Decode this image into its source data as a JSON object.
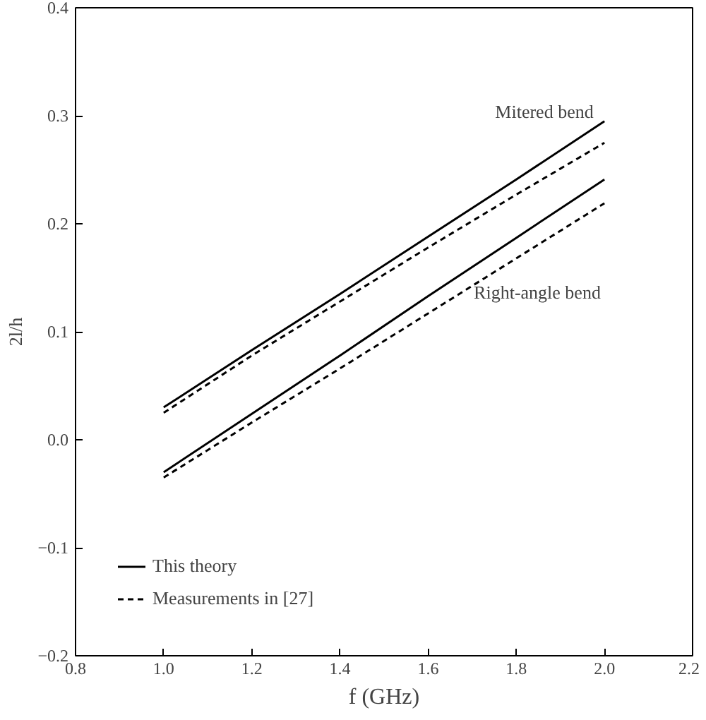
{
  "chart_data": {
    "type": "line",
    "xlabel": "f (GHz)",
    "ylabel": "2l/h",
    "x": [
      1.0,
      1.2,
      1.4,
      1.6,
      1.8,
      2.0
    ],
    "series": [
      {
        "name": "This theory",
        "color": "#000000",
        "line_style": "solid",
        "values": [
          0.03,
          0.083,
          0.135,
          0.188,
          0.241,
          0.295
        ]
      },
      {
        "name": "Measurements in [27]",
        "color": "#000000",
        "line_style": "dashed",
        "values": [
          0.025,
          0.078,
          0.128,
          0.178,
          0.227,
          0.275
        ]
      },
      {
        "color": "#000000",
        "line_style": "solid",
        "values": [
          -0.03,
          0.024,
          0.078,
          0.133,
          0.187,
          0.241
        ]
      },
      {
        "color": "#000000",
        "line_style": "dashed",
        "values": [
          -0.035,
          0.016,
          0.066,
          0.117,
          0.168,
          0.219
        ]
      }
    ],
    "annotations": [
      "Mitered bend",
      "Right-angle bend"
    ],
    "xlim": [
      0.8,
      2.2
    ],
    "ylim": [
      -0.2,
      0.4
    ],
    "xticks": [
      0.8,
      {
        "value": 1.0,
        "label": "1.0"
      },
      1.2,
      1.4,
      1.6,
      1.8,
      {
        "value": 2.0,
        "label": "2.0"
      },
      2.2
    ],
    "yticks": [
      -0.2,
      -0.1,
      {
        "value": 0.0,
        "label": "0.0"
      },
      0.1,
      0.2,
      0.3,
      0.4
    ],
    "legend": "bottom left",
    "grid": false
  }
}
